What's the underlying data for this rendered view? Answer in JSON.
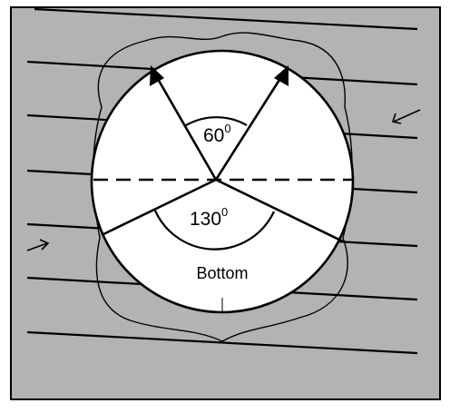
{
  "diagram": {
    "colors": {
      "panel_fill": "#b3b3b3",
      "circle_fill": "#ffffff",
      "stroke": "#000000"
    },
    "labels": {
      "top_angle_value": "60",
      "top_angle_degree": "0",
      "bottom_angle_value": "130",
      "bottom_angle_degree": "0",
      "bottom_label": "Bottom"
    },
    "angles_deg": {
      "top_sector": 60,
      "bottom_sector": 130
    },
    "flow_arrows": [
      {
        "name": "flow-arrow-left-in",
        "direction": "right"
      },
      {
        "name": "flow-arrow-right-in",
        "direction": "left"
      }
    ]
  }
}
